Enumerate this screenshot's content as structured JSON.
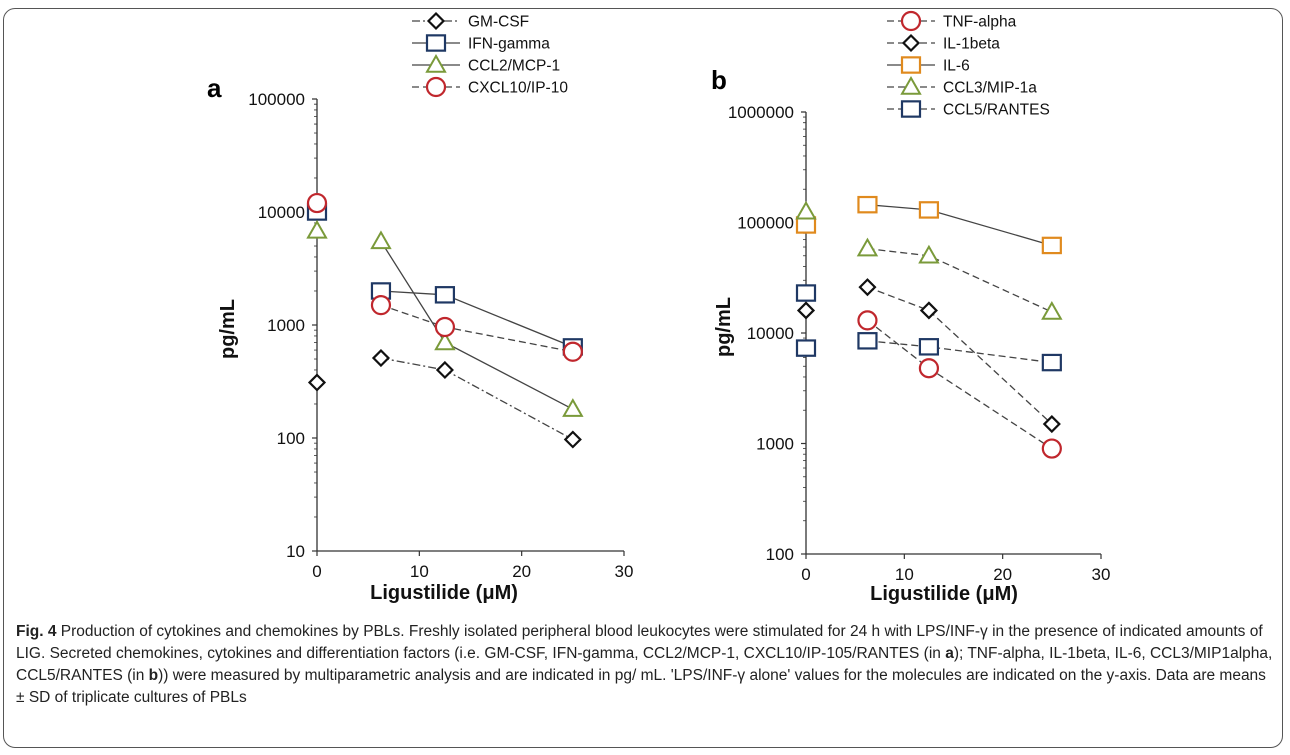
{
  "caption": {
    "fig_label": "Fig. 4",
    "text_1": " Production of cytokines and chemokines by PBLs. Freshly isolated peripheral blood leukocytes were stimulated for 24 h with LPS/INF-γ in the presence of indicated amounts of LIG. Secreted chemokines, cytokines and differentiation factors (i.e. GM-CSF, IFN-gamma, CCL2/MCP-1, CXCL10/IP-105/RANTES (in ",
    "panel_a": "a",
    "text_2": "); TNF-alpha, IL-1beta, IL-6, CCL3/MIP1alpha, CCL5/RANTES (in ",
    "panel_b": "b",
    "text_3": ")) were measured by multiparametric analysis and are indicated in pg/ mL. 'LPS/INF-γ alone' values for the molecules are indicated on the y-axis. Data are means ± SD of triplicate cultures of PBLs"
  },
  "chart_data": [
    {
      "panel": "a",
      "type": "line",
      "ylog": true,
      "ylim": [
        10,
        100000
      ],
      "xlim": [
        0,
        30
      ],
      "xticks": [
        "0",
        "10",
        "20",
        "30"
      ],
      "yticks": [
        "10",
        "100",
        "1000",
        "10000",
        "100000"
      ],
      "xlabel": "Ligustilide (μM)",
      "ylabel": "pg/mL",
      "legend_position": "top",
      "series": [
        {
          "name": "GM-CSF",
          "marker": "diamond",
          "color": "#111111",
          "dash": "dashdot",
          "base": 310,
          "x": [
            6.25,
            12.5,
            25
          ],
          "y": [
            510,
            400,
            97
          ]
        },
        {
          "name": "IFN-gamma",
          "marker": "square",
          "color": "#1f3864",
          "dash": "solid",
          "base": 10000,
          "x": [
            6.25,
            12.5,
            25
          ],
          "y": [
            2000,
            1850,
            640
          ]
        },
        {
          "name": "CCL2/MCP-1",
          "marker": "triangle",
          "color": "#7a9a3a",
          "dash": "solid",
          "base": 6800,
          "x": [
            6.25,
            12.5,
            25
          ],
          "y": [
            5500,
            700,
            180
          ]
        },
        {
          "name": "CXCL10/IP-10",
          "marker": "circle",
          "color": "#c0272d",
          "dash": "dashed",
          "base": 12000,
          "x": [
            6.25,
            12.5,
            25
          ],
          "y": [
            1500,
            960,
            580
          ]
        }
      ]
    },
    {
      "panel": "b",
      "type": "line",
      "ylog": true,
      "ylim": [
        100,
        1000000
      ],
      "xlim": [
        0,
        30
      ],
      "xticks": [
        "0",
        "10",
        "20",
        "30"
      ],
      "yticks": [
        "100",
        "1000",
        "10000",
        "100000",
        "1000000"
      ],
      "xlabel": "Ligustilide (μM)",
      "ylabel": "pg/mL",
      "legend_position": "top",
      "series": [
        {
          "name": "TNF-alpha",
          "marker": "circle",
          "color": "#c0272d",
          "dash": "dashed",
          "base": null,
          "x": [
            6.25,
            12.5,
            25
          ],
          "y": [
            13000,
            4800,
            900
          ]
        },
        {
          "name": "IL-1beta",
          "marker": "diamond",
          "color": "#111111",
          "dash": "dashed",
          "base": 16000,
          "x": [
            6.25,
            12.5,
            25
          ],
          "y": [
            26000,
            16000,
            1500
          ]
        },
        {
          "name": "IL-6",
          "marker": "square",
          "color": "#e08a1e",
          "dash": "solid",
          "base": 95000,
          "x": [
            6.25,
            12.5,
            25
          ],
          "y": [
            145000,
            130000,
            62000
          ]
        },
        {
          "name": "CCL3/MIP-1a",
          "marker": "triangle",
          "color": "#7a9a3a",
          "dash": "dashed",
          "base": 125000,
          "x": [
            6.25,
            12.5,
            25
          ],
          "y": [
            58000,
            50000,
            15500
          ]
        },
        {
          "name": "CCL5/RANTES",
          "marker": "square",
          "color": "#1f3864",
          "dash": "dashed",
          "base": 23000,
          "extra_base": 7300,
          "x": [
            6.25,
            12.5,
            25
          ],
          "y": [
            8500,
            7500,
            5400
          ]
        }
      ]
    }
  ]
}
